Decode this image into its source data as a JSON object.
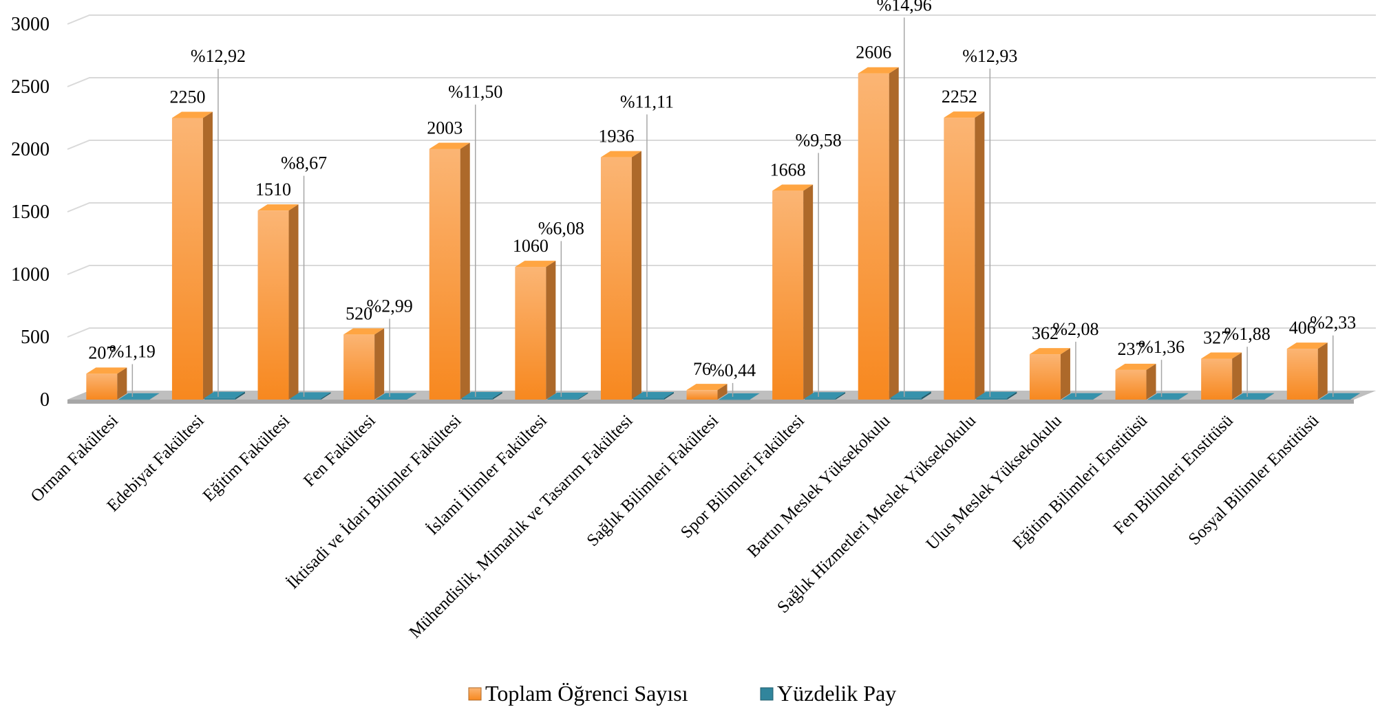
{
  "chart_data": {
    "type": "bar3d",
    "categories": [
      "Orman Fakültesi",
      "Edebiyat Fakültesi",
      "Eğitim Fakültesi",
      "Fen Fakültesi",
      "İktisadi ve İdari Bilimler Fakültesi",
      "İslami İlimler Fakültesi",
      "Mühendislik, Mimarlık ve Tasarım Fakültesi",
      "Sağlık Bilimleri Fakültesi",
      "Spor Bilimleri Fakültesi",
      "Bartın Meslek Yüksekokulu",
      "Sağlık Hizmetleri Meslek Yüksekokulu",
      "Ulus Meslek Yüksekokulu",
      "Eğitim Bilimleri Enstitüsü",
      "Fen Bilimleri Enstitüsü",
      "Sosyal Bilimler Enstitüsü"
    ],
    "series": [
      {
        "name": "Toplam Öğrenci Sayısı",
        "color": "#f7963c",
        "values": [
          207,
          2250,
          1510,
          520,
          2003,
          1060,
          1936,
          76,
          1668,
          2606,
          2252,
          362,
          237,
          327,
          406
        ]
      },
      {
        "name": "Yüzdelik Pay",
        "color": "#31859c",
        "values": [
          1.19,
          12.92,
          8.67,
          2.99,
          11.5,
          6.08,
          11.11,
          0.44,
          9.58,
          14.96,
          12.93,
          2.08,
          1.36,
          1.88,
          2.33
        ],
        "value_labels": [
          "%1,19",
          "%12,92",
          "%8,67",
          "%2,99",
          "%11,50",
          "%6,08",
          "%11,11",
          "%0,44",
          "%9,58",
          "%14,96",
          "%12,93",
          "%2,08",
          "%1,36",
          "%1,88",
          "%2,33"
        ]
      }
    ],
    "ylim": [
      0,
      3000
    ],
    "yticks": [
      0,
      500,
      1000,
      1500,
      2000,
      2500,
      3000
    ],
    "grid": true,
    "legend": "bottom"
  }
}
